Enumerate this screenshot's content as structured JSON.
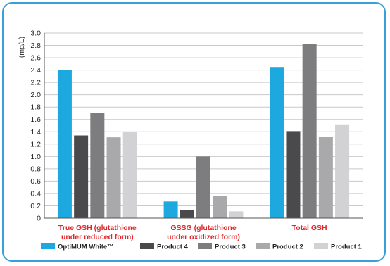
{
  "chart_data": {
    "type": "bar",
    "title": "",
    "xlabel": "",
    "ylabel": "(mg/L)",
    "ylim": [
      0,
      3.0
    ],
    "ytick_step": 0.2,
    "yticks": [
      "0",
      "0.2",
      "0.4",
      "0.6",
      "0.8",
      "1.0",
      "1.2",
      "1.4",
      "1.6",
      "1.8",
      "2.0",
      "2.2",
      "2.4",
      "2.6",
      "2.8",
      "3.0"
    ],
    "grid": true,
    "legend_position": "bottom",
    "categories": [
      [
        "True GSH (glutathione",
        "under reduced form)"
      ],
      [
        "GSSG (glutathione",
        "under oxidized form)"
      ],
      [
        "Total GSH"
      ]
    ],
    "series": [
      {
        "name": "OptiMUM White™",
        "color": "#1ea8e0",
        "values": [
          2.4,
          0.27,
          2.45
        ]
      },
      {
        "name": "Product 4",
        "color": "#4a4a4c",
        "values": [
          1.34,
          0.13,
          1.41
        ]
      },
      {
        "name": "Product 3",
        "color": "#7d7d80",
        "values": [
          1.7,
          1.0,
          2.82
        ]
      },
      {
        "name": "Product 2",
        "color": "#a9a9ab",
        "values": [
          1.31,
          0.36,
          1.32
        ]
      },
      {
        "name": "Product 1",
        "color": "#d2d2d4",
        "values": [
          1.4,
          0.11,
          1.52
        ]
      }
    ]
  }
}
